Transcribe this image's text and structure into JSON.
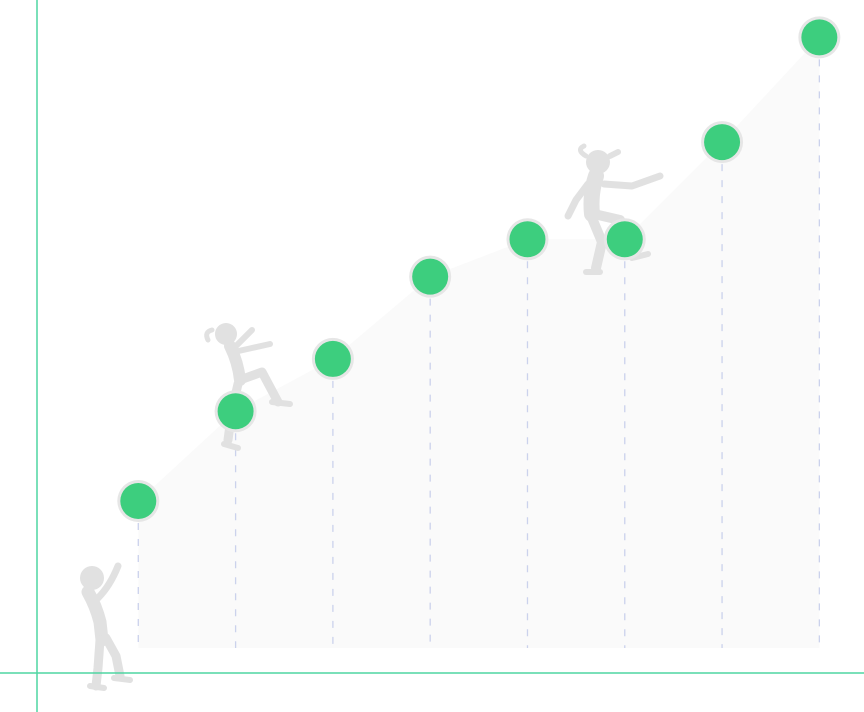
{
  "chart_data": {
    "type": "scatter",
    "title": "",
    "xlabel": "",
    "ylabel": "",
    "grid": false,
    "axes_visible": true,
    "tick_labels_visible": false,
    "x": [
      1,
      2,
      3,
      4,
      5,
      6,
      7,
      8
    ],
    "values": [
      1.8,
      3.0,
      3.7,
      4.8,
      5.3,
      5.3,
      6.6,
      8.0
    ],
    "xlim": [
      0,
      8.5
    ],
    "ylim": [
      -0.5,
      8.5
    ],
    "marker_color": "#3dce7e",
    "marker_halo_color": "#e6e6e6",
    "axis_color": "#4fd6a2",
    "dropline_color": "#cbd2ec",
    "area_fill_color": "#fafafa",
    "figure_color": "#e1e1e1"
  }
}
